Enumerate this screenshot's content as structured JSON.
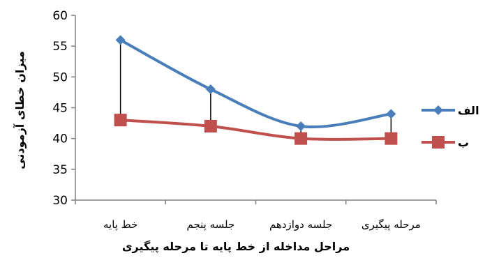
{
  "chart_data": {
    "type": "line",
    "categories": [
      "خط پایه",
      "جلسه پنجم",
      "جلسه دوازدهم",
      "مرحله پیگیری"
    ],
    "series": [
      {
        "name": "الف",
        "values": [
          56,
          48,
          42,
          44
        ],
        "color": "#4a7ebb",
        "marker": "diamond"
      },
      {
        "name": "ب",
        "values": [
          43,
          42,
          40,
          40
        ],
        "color": "#c0504d",
        "marker": "square"
      }
    ],
    "ylabel": "میزان خطای آزمودنی",
    "xlabel": "مراحل مداخله از خط پایه تا مرحله پیگیری",
    "ylim": [
      30,
      60
    ],
    "yticks": [
      30,
      35,
      40,
      45,
      50,
      55,
      60
    ],
    "grid": false,
    "legend_position": "right",
    "drop_lines": true
  }
}
